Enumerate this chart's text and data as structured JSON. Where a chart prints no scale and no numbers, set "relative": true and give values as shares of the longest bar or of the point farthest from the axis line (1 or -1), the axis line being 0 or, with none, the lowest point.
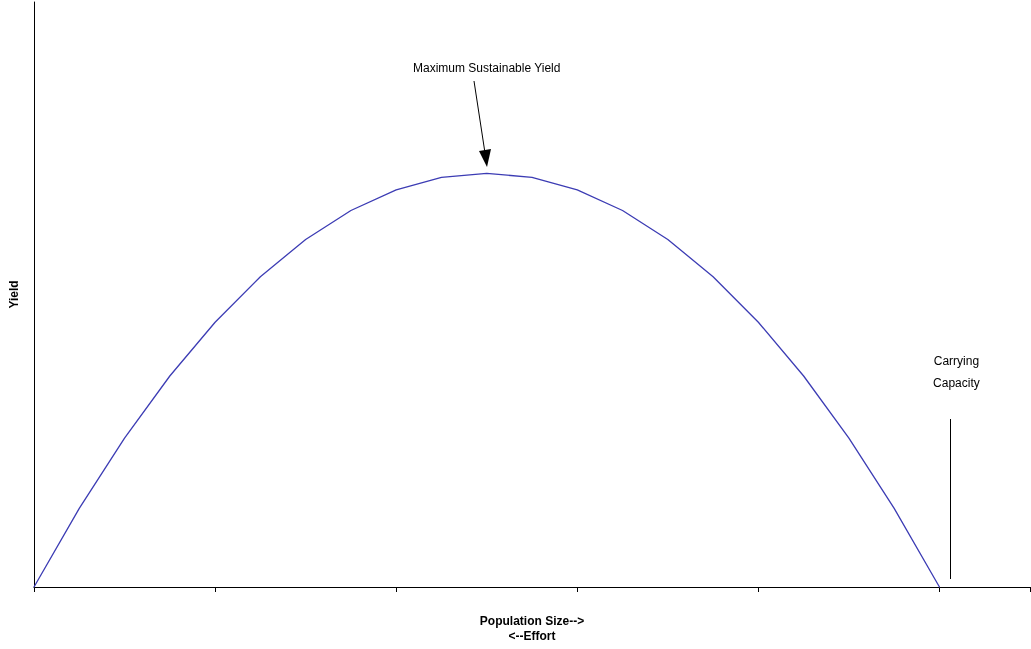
{
  "chart_data": {
    "type": "line",
    "relative": true,
    "xlabel": "Population Size-->\n<--Effort",
    "ylabel": "Yield",
    "categories": [
      null,
      null,
      null,
      null,
      null,
      null,
      null,
      null,
      null,
      null,
      null,
      null,
      null,
      null,
      null,
      null,
      null,
      null,
      null,
      null,
      null,
      null,
      null
    ],
    "series": [
      {
        "color": "#3c3cb4",
        "values": [
          0,
          0.19,
          0.36,
          0.51,
          0.64,
          0.75,
          0.84,
          0.91,
          0.96,
          0.99,
          1,
          0.99,
          0.96,
          0.91,
          0.84,
          0.75,
          0.64,
          0.51,
          0.36,
          0.19,
          0,
          null,
          null
        ]
      }
    ],
    "annotations": [
      "Maximum Sustainable Yield",
      "Carrying Capacity"
    ],
    "grid": false,
    "marker": "none",
    "line_style": "solid"
  }
}
